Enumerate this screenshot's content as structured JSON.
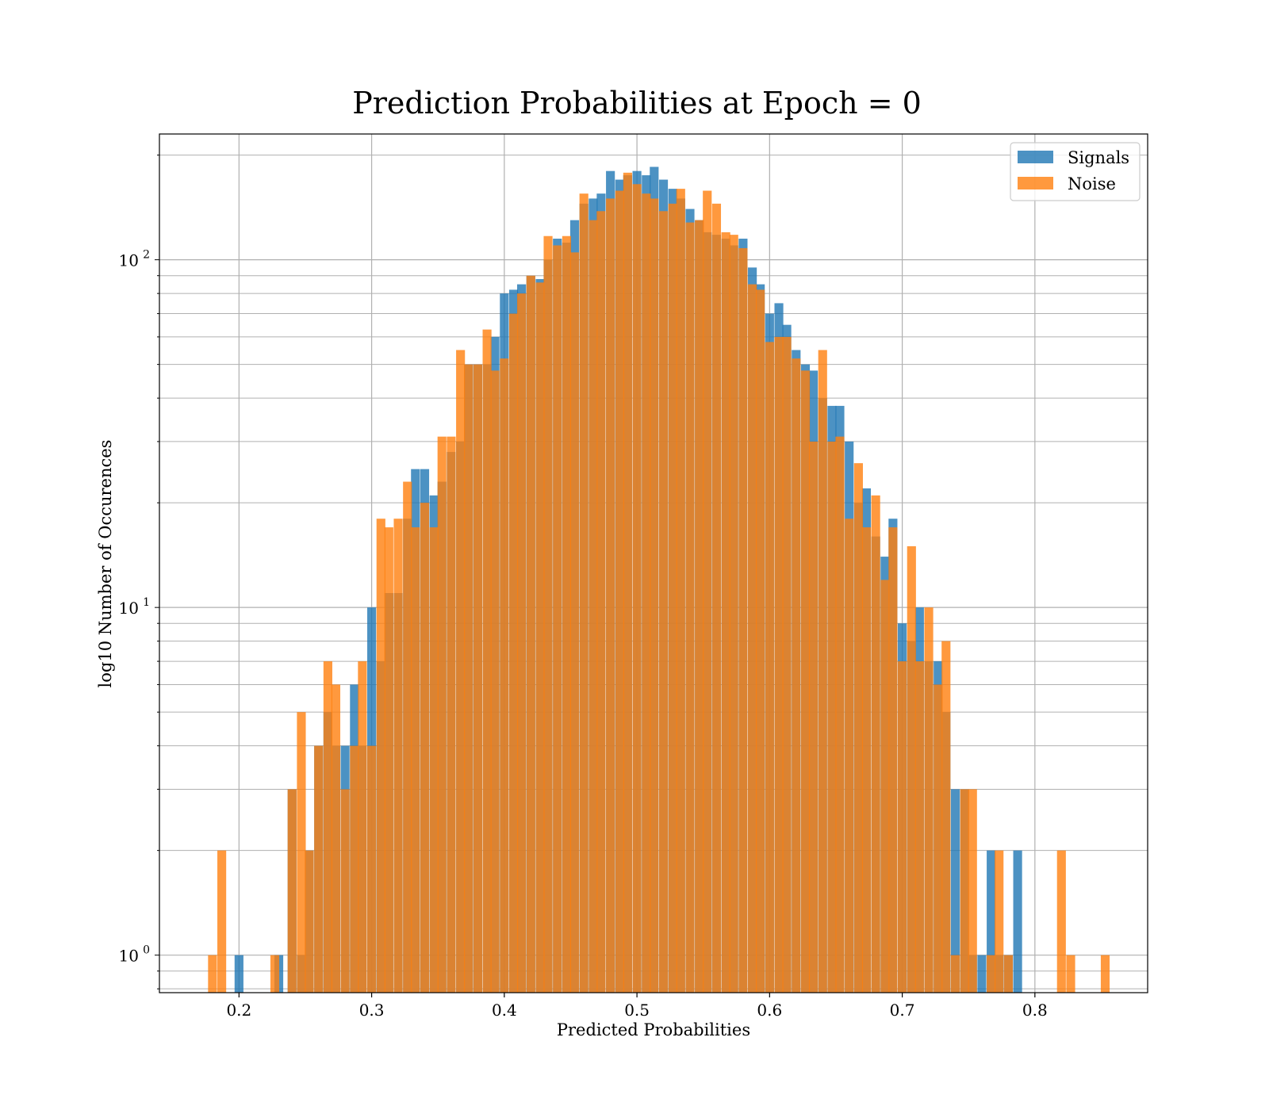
{
  "chart_data": {
    "type": "bar",
    "title": "Prediction Probabilities at Epoch = 0",
    "xlabel": "Predicted Probabilities",
    "ylabel": "log10 Number of Occurences",
    "x_scale": "linear",
    "y_scale": "log",
    "xlim": [
      0.14,
      0.885
    ],
    "ylim": [
      0.78,
      230
    ],
    "x_ticks": [
      0.2,
      0.3,
      0.4,
      0.5,
      0.6,
      0.7,
      0.8
    ],
    "x_tick_labels": [
      "0.2",
      "0.3",
      "0.4",
      "0.5",
      "0.6",
      "0.7",
      "0.8"
    ],
    "y_ticks": [
      {
        "value": 1,
        "base": "10",
        "exp": "0"
      },
      {
        "value": 10,
        "base": "10",
        "exp": "1"
      },
      {
        "value": 100,
        "base": "10",
        "exp": "2"
      }
    ],
    "grid": true,
    "legend_position": "top-right",
    "series": [
      {
        "name": "Signals",
        "color": "#1f77b4",
        "opacity": 0.8,
        "bin_width": 0.00667,
        "bins": [
          [
            0.2,
            1
          ],
          [
            0.23,
            1
          ],
          [
            0.24,
            3
          ],
          [
            0.247,
            1
          ],
          [
            0.253,
            2
          ],
          [
            0.26,
            4
          ],
          [
            0.267,
            5
          ],
          [
            0.273,
            4
          ],
          [
            0.28,
            4
          ],
          [
            0.287,
            6
          ],
          [
            0.293,
            4
          ],
          [
            0.3,
            10
          ],
          [
            0.307,
            7
          ],
          [
            0.313,
            11
          ],
          [
            0.32,
            11
          ],
          [
            0.327,
            18
          ],
          [
            0.333,
            25
          ],
          [
            0.34,
            25
          ],
          [
            0.347,
            21
          ],
          [
            0.353,
            23
          ],
          [
            0.36,
            28
          ],
          [
            0.367,
            30
          ],
          [
            0.373,
            50
          ],
          [
            0.38,
            50
          ],
          [
            0.387,
            50
          ],
          [
            0.393,
            60
          ],
          [
            0.4,
            80
          ],
          [
            0.407,
            82
          ],
          [
            0.413,
            85
          ],
          [
            0.42,
            90
          ],
          [
            0.427,
            88
          ],
          [
            0.433,
            100
          ],
          [
            0.44,
            115
          ],
          [
            0.447,
            112
          ],
          [
            0.453,
            130
          ],
          [
            0.46,
            145
          ],
          [
            0.467,
            150
          ],
          [
            0.473,
            155
          ],
          [
            0.48,
            180
          ],
          [
            0.487,
            170
          ],
          [
            0.493,
            175
          ],
          [
            0.5,
            180
          ],
          [
            0.507,
            175
          ],
          [
            0.513,
            185
          ],
          [
            0.52,
            170
          ],
          [
            0.527,
            160
          ],
          [
            0.533,
            150
          ],
          [
            0.54,
            140
          ],
          [
            0.547,
            130
          ],
          [
            0.553,
            120
          ],
          [
            0.56,
            118
          ],
          [
            0.567,
            115
          ],
          [
            0.573,
            110
          ],
          [
            0.58,
            115
          ],
          [
            0.587,
            95
          ],
          [
            0.593,
            85
          ],
          [
            0.6,
            70
          ],
          [
            0.607,
            75
          ],
          [
            0.613,
            65
          ],
          [
            0.62,
            55
          ],
          [
            0.627,
            50
          ],
          [
            0.633,
            48
          ],
          [
            0.64,
            40
          ],
          [
            0.647,
            38
          ],
          [
            0.653,
            38
          ],
          [
            0.66,
            30
          ],
          [
            0.667,
            20
          ],
          [
            0.673,
            22
          ],
          [
            0.68,
            16
          ],
          [
            0.687,
            14
          ],
          [
            0.693,
            18
          ],
          [
            0.7,
            9
          ],
          [
            0.707,
            8
          ],
          [
            0.713,
            10
          ],
          [
            0.72,
            7
          ],
          [
            0.727,
            7
          ],
          [
            0.733,
            5
          ],
          [
            0.74,
            3
          ],
          [
            0.747,
            3
          ],
          [
            0.753,
            1
          ],
          [
            0.76,
            1
          ],
          [
            0.767,
            2
          ],
          [
            0.773,
            1
          ],
          [
            0.78,
            1
          ],
          [
            0.787,
            2
          ]
        ]
      },
      {
        "name": "Noise",
        "color": "#ff7f0e",
        "opacity": 0.8,
        "bin_width": 0.00667,
        "bins": [
          [
            0.18,
            1
          ],
          [
            0.187,
            2
          ],
          [
            0.227,
            1
          ],
          [
            0.24,
            3
          ],
          [
            0.247,
            5
          ],
          [
            0.253,
            2
          ],
          [
            0.26,
            4
          ],
          [
            0.267,
            7
          ],
          [
            0.273,
            6
          ],
          [
            0.28,
            3
          ],
          [
            0.287,
            4
          ],
          [
            0.293,
            7
          ],
          [
            0.3,
            4
          ],
          [
            0.307,
            18
          ],
          [
            0.313,
            17
          ],
          [
            0.32,
            18
          ],
          [
            0.327,
            23
          ],
          [
            0.333,
            17
          ],
          [
            0.34,
            20
          ],
          [
            0.347,
            17
          ],
          [
            0.353,
            31
          ],
          [
            0.36,
            31
          ],
          [
            0.367,
            55
          ],
          [
            0.373,
            50
          ],
          [
            0.38,
            50
          ],
          [
            0.387,
            63
          ],
          [
            0.393,
            48
          ],
          [
            0.4,
            52
          ],
          [
            0.407,
            70
          ],
          [
            0.413,
            80
          ],
          [
            0.42,
            90
          ],
          [
            0.427,
            86
          ],
          [
            0.433,
            117
          ],
          [
            0.44,
            110
          ],
          [
            0.447,
            117
          ],
          [
            0.453,
            105
          ],
          [
            0.46,
            155
          ],
          [
            0.467,
            130
          ],
          [
            0.473,
            138
          ],
          [
            0.48,
            150
          ],
          [
            0.487,
            158
          ],
          [
            0.493,
            178
          ],
          [
            0.5,
            165
          ],
          [
            0.507,
            155
          ],
          [
            0.513,
            150
          ],
          [
            0.52,
            138
          ],
          [
            0.527,
            145
          ],
          [
            0.533,
            160
          ],
          [
            0.54,
            128
          ],
          [
            0.547,
            130
          ],
          [
            0.553,
            158
          ],
          [
            0.56,
            145
          ],
          [
            0.567,
            120
          ],
          [
            0.573,
            118
          ],
          [
            0.58,
            108
          ],
          [
            0.587,
            85
          ],
          [
            0.593,
            82
          ],
          [
            0.6,
            58
          ],
          [
            0.607,
            60
          ],
          [
            0.613,
            60
          ],
          [
            0.62,
            52
          ],
          [
            0.627,
            48
          ],
          [
            0.633,
            30
          ],
          [
            0.64,
            55
          ],
          [
            0.647,
            30
          ],
          [
            0.653,
            31
          ],
          [
            0.66,
            18
          ],
          [
            0.667,
            26
          ],
          [
            0.673,
            17
          ],
          [
            0.68,
            21
          ],
          [
            0.687,
            12
          ],
          [
            0.693,
            17
          ],
          [
            0.7,
            7
          ],
          [
            0.707,
            15
          ],
          [
            0.713,
            7
          ],
          [
            0.72,
            10
          ],
          [
            0.727,
            6
          ],
          [
            0.733,
            8
          ],
          [
            0.74,
            1
          ],
          [
            0.747,
            3
          ],
          [
            0.753,
            3
          ],
          [
            0.767,
            1
          ],
          [
            0.773,
            2
          ],
          [
            0.78,
            1
          ],
          [
            0.82,
            2
          ],
          [
            0.827,
            1
          ],
          [
            0.853,
            1
          ]
        ]
      }
    ]
  }
}
